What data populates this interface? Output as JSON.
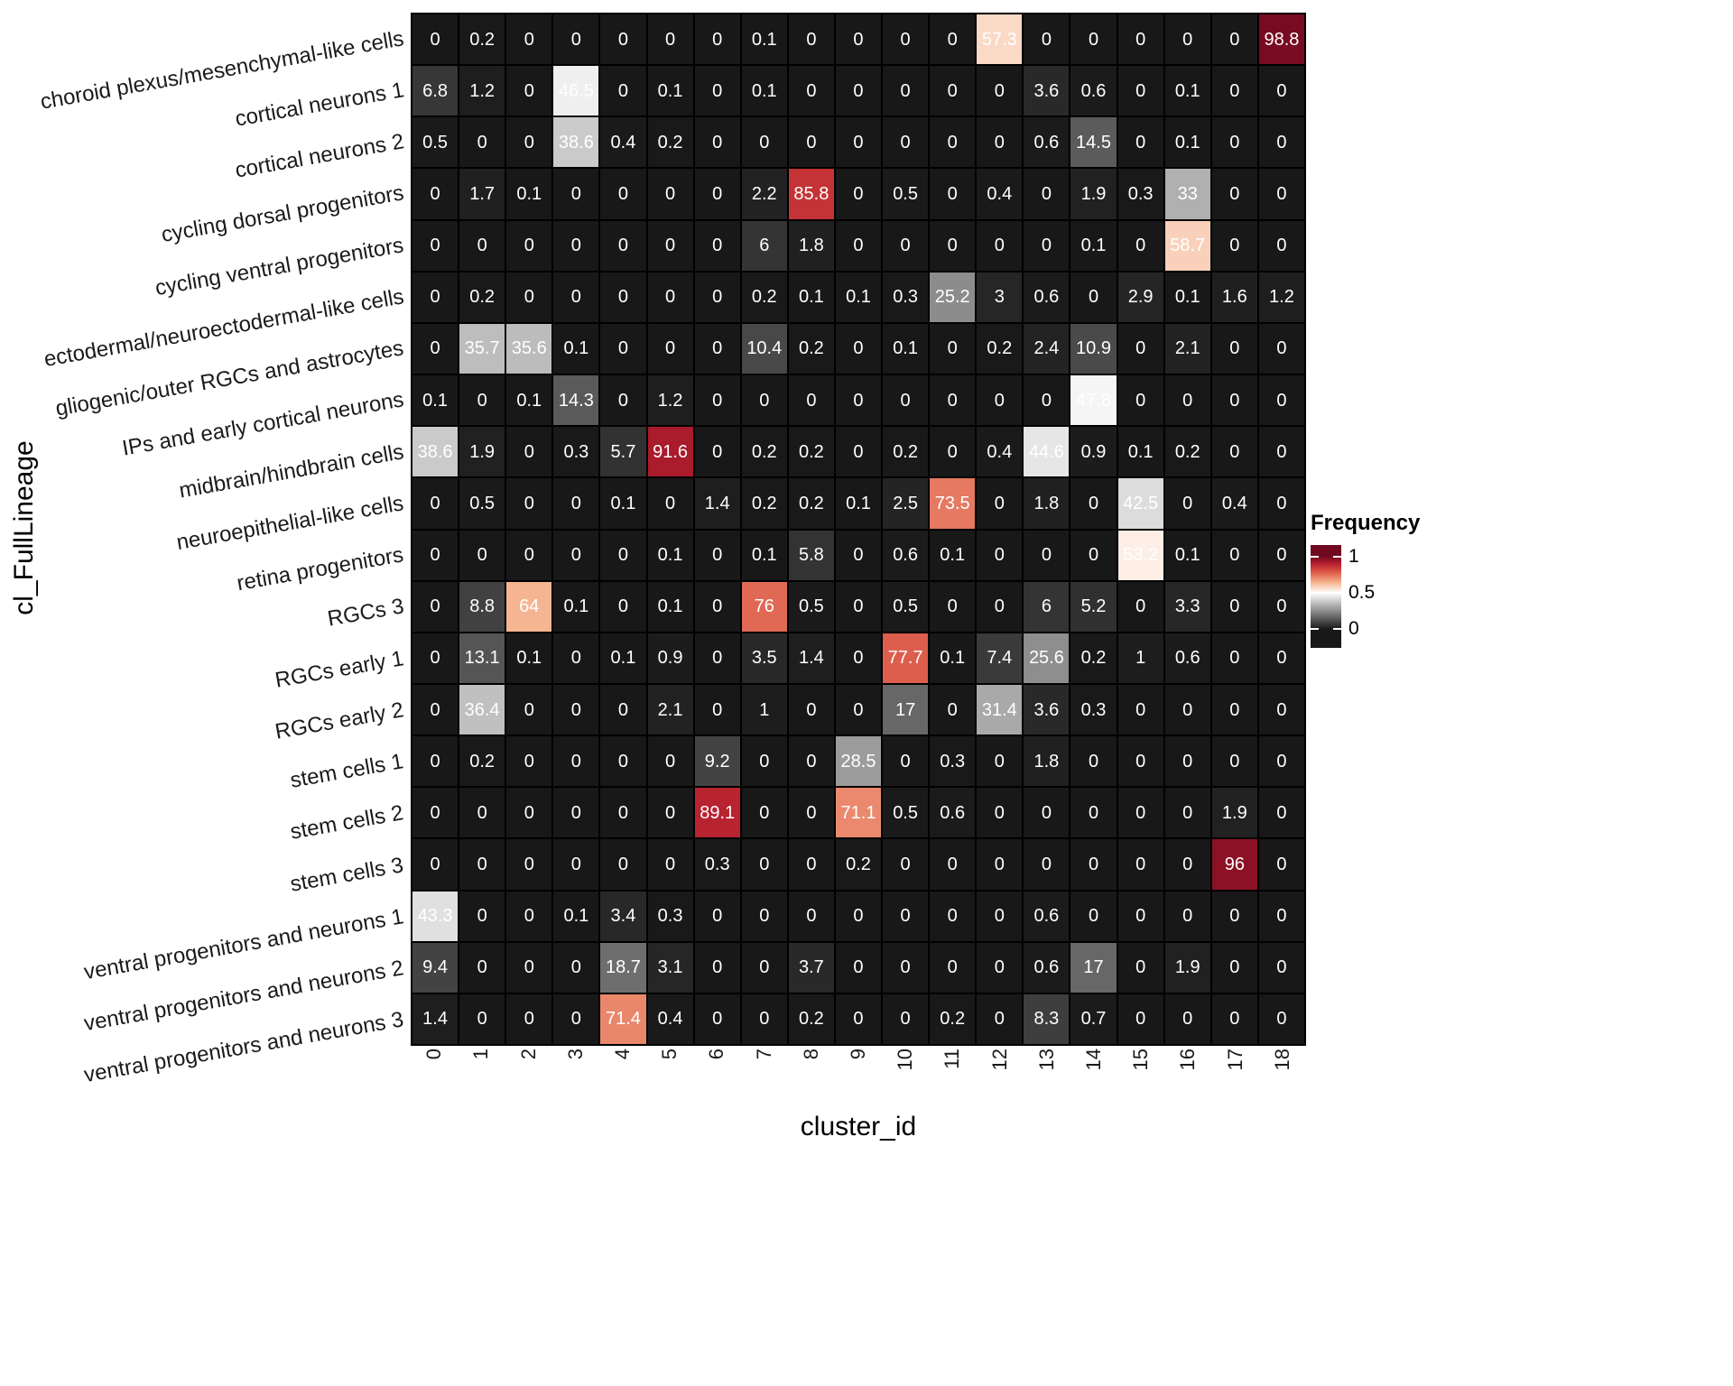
{
  "chart_data": {
    "type": "heatmap",
    "title": "",
    "xlabel": "cluster_id",
    "ylabel": "cl_FullLineage",
    "columns": [
      "0",
      "1",
      "2",
      "3",
      "4",
      "5",
      "6",
      "7",
      "8",
      "9",
      "10",
      "11",
      "12",
      "13",
      "14",
      "15",
      "16",
      "17",
      "18"
    ],
    "rows": [
      "choroid plexus/mesenchymal-like cells",
      "cortical neurons 1",
      "cortical neurons 2",
      "cycling dorsal progenitors",
      "cycling ventral progenitors",
      "ectodermal/neuroectodermal-like cells",
      "gliogenic/outer RGCs and astrocytes",
      "IPs and early cortical neurons",
      "midbrain/hindbrain cells",
      "neuroepithelial-like cells",
      "retina progenitors",
      "RGCs 3",
      "RGCs early 1",
      "RGCs early 2",
      "stem cells 1",
      "stem cells 2",
      "stem cells 3",
      "ventral progenitors and neurons 1",
      "ventral progenitors and neurons 2",
      "ventral progenitors and neurons 3"
    ],
    "values": [
      [
        0,
        0.2,
        0,
        0,
        0,
        0,
        0,
        0.1,
        0,
        0,
        0,
        0,
        57.3,
        0,
        0,
        0,
        0,
        0,
        98.8
      ],
      [
        6.8,
        1.2,
        0,
        46.5,
        0,
        0.1,
        0,
        0.1,
        0,
        0,
        0,
        0,
        0,
        3.6,
        0.6,
        0,
        0.1,
        0,
        0
      ],
      [
        0.5,
        0,
        0,
        38.6,
        0.4,
        0.2,
        0,
        0,
        0,
        0,
        0,
        0,
        0,
        0.6,
        14.5,
        0,
        0.1,
        0,
        0
      ],
      [
        0,
        1.7,
        0.1,
        0,
        0,
        0,
        0,
        2.2,
        85.8,
        0,
        0.5,
        0,
        0.4,
        0,
        1.9,
        0.3,
        33,
        0,
        0
      ],
      [
        0,
        0,
        0,
        0,
        0,
        0,
        0,
        6,
        1.8,
        0,
        0,
        0,
        0,
        0,
        0.1,
        0,
        58.7,
        0,
        0
      ],
      [
        0,
        0.2,
        0,
        0,
        0,
        0,
        0,
        0.2,
        0.1,
        0.1,
        0.3,
        25.2,
        3,
        0.6,
        0,
        2.9,
        0.1,
        1.6,
        1.2
      ],
      [
        0,
        35.7,
        35.6,
        0.1,
        0,
        0,
        0,
        10.4,
        0.2,
        0,
        0.1,
        0,
        0.2,
        2.4,
        10.9,
        0,
        2.1,
        0,
        0
      ],
      [
        0.1,
        0,
        0.1,
        14.3,
        0,
        1.2,
        0,
        0,
        0,
        0,
        0,
        0,
        0,
        0,
        47.8,
        0,
        0,
        0,
        0
      ],
      [
        38.6,
        1.9,
        0,
        0.3,
        5.7,
        91.6,
        0,
        0.2,
        0.2,
        0,
        0.2,
        0,
        0.4,
        44.6,
        0.9,
        0.1,
        0.2,
        0,
        0
      ],
      [
        0,
        0.5,
        0,
        0,
        0.1,
        0,
        1.4,
        0.2,
        0.2,
        0.1,
        2.5,
        73.5,
        0,
        1.8,
        0,
        42.5,
        0,
        0.4,
        0
      ],
      [
        0,
        0,
        0,
        0,
        0,
        0.1,
        0,
        0.1,
        5.8,
        0,
        0.6,
        0.1,
        0,
        0,
        0,
        53.2,
        0.1,
        0,
        0
      ],
      [
        0,
        8.8,
        64,
        0.1,
        0,
        0.1,
        0,
        76,
        0.5,
        0,
        0.5,
        0,
        0,
        6,
        5.2,
        0,
        3.3,
        0,
        0
      ],
      [
        0,
        13.1,
        0.1,
        0,
        0.1,
        0.9,
        0,
        3.5,
        1.4,
        0,
        77.7,
        0.1,
        7.4,
        25.6,
        0.2,
        1,
        0.6,
        0,
        0
      ],
      [
        0,
        36.4,
        0,
        0,
        0,
        2.1,
        0,
        1,
        0,
        0,
        17,
        0,
        31.4,
        3.6,
        0.3,
        0,
        0,
        0,
        0
      ],
      [
        0,
        0.2,
        0,
        0,
        0,
        0,
        9.2,
        0,
        0,
        28.5,
        0,
        0.3,
        0,
        1.8,
        0,
        0,
        0,
        0,
        0
      ],
      [
        0,
        0,
        0,
        0,
        0,
        0,
        89.1,
        0,
        0,
        71.1,
        0.5,
        0.6,
        0,
        0,
        0,
        0,
        0,
        1.9,
        0
      ],
      [
        0,
        0,
        0,
        0,
        0,
        0,
        0.3,
        0,
        0,
        0.2,
        0,
        0,
        0,
        0,
        0,
        0,
        0,
        96,
        0
      ],
      [
        43.3,
        0,
        0,
        0.1,
        3.4,
        0.3,
        0,
        0,
        0,
        0,
        0,
        0,
        0,
        0.6,
        0,
        0,
        0,
        0,
        0
      ],
      [
        9.4,
        0,
        0,
        0,
        18.7,
        3.1,
        0,
        0,
        3.7,
        0,
        0,
        0,
        0,
        0.6,
        17,
        0,
        1.9,
        0,
        0
      ],
      [
        1.4,
        0,
        0,
        0,
        71.4,
        0.4,
        0,
        0,
        0.2,
        0,
        0,
        0.2,
        0,
        8.3,
        0.7,
        0,
        0,
        0,
        0
      ]
    ],
    "value_to_frequency_divisor": 100,
    "legend": {
      "title": "Frequency",
      "ticks": [
        "1",
        "0.5",
        "0"
      ],
      "position": "right"
    },
    "grid": "black cell borders",
    "axis_label_angle_y": -10,
    "axis_label_angle_x": -90
  },
  "colors": {
    "background": "#ffffff",
    "cell_text": "#ffffff",
    "grid_line": "#000000",
    "axis_text": "#1a1a1a",
    "scale_stops": [
      {
        "t": 0,
        "color": "#181818"
      },
      {
        "t": 0.5,
        "color": "#ffffff"
      },
      {
        "t": 0.65,
        "color": "#f5b08a"
      },
      {
        "t": 0.8,
        "color": "#d94f42"
      },
      {
        "t": 0.9,
        "color": "#b51f2e"
      },
      {
        "t": 1,
        "color": "#70081f"
      }
    ]
  }
}
